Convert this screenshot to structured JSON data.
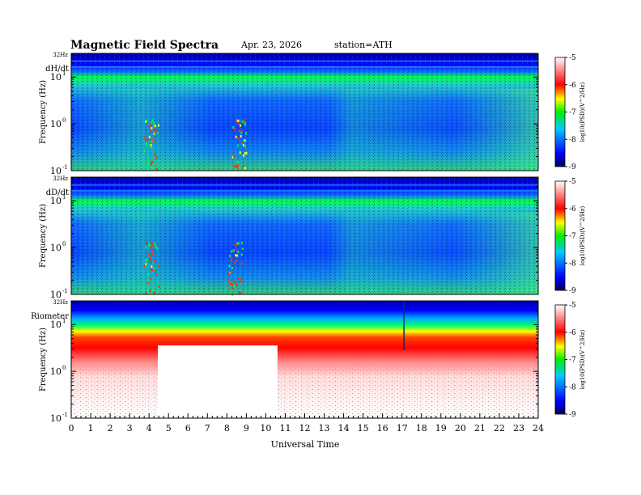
{
  "header": {
    "title": "Magnetic Field Spectra",
    "date": "Apr. 23, 2026",
    "station": "station=ATH"
  },
  "chart_data": {
    "type": "heatmap",
    "xlabel": "Universal Time",
    "x_ticks": [
      0,
      1,
      2,
      3,
      4,
      5,
      6,
      7,
      8,
      9,
      10,
      11,
      12,
      13,
      14,
      15,
      16,
      17,
      18,
      19,
      20,
      21,
      22,
      23,
      24
    ],
    "xlim": [
      0,
      24
    ],
    "ylim_hz": [
      0.1,
      32
    ],
    "y_scale": "log",
    "colorbar": {
      "label": "log10(PSD)(V^2/Hz)",
      "ticks": [
        "-5",
        "-6",
        "-7",
        "-8",
        "-9"
      ],
      "range": [
        -9,
        -5
      ]
    },
    "panels": [
      {
        "label": "dH/dt",
        "ylabel": "Frequency (Hz)",
        "y_top_label": "32Hz",
        "y_ticks": [
          {
            "base": "10",
            "exp": "1",
            "value": 10
          },
          {
            "base": "10",
            "exp": "0",
            "value": 1
          },
          {
            "base": "10",
            "exp": "-1",
            "value": 0.1
          }
        ],
        "bright_bursts_ut": [
          4.1,
          8.6
        ]
      },
      {
        "label": "dD/dt",
        "ylabel": "Frequency (Hz)",
        "y_top_label": "32Hz",
        "y_ticks": [
          {
            "base": "10",
            "exp": "1",
            "value": 10
          },
          {
            "base": "10",
            "exp": "0",
            "value": 1
          },
          {
            "base": "10",
            "exp": "-1",
            "value": 0.1
          }
        ],
        "bright_bursts_ut": [
          4.1,
          8.4
        ]
      },
      {
        "label": "Riometer",
        "ylabel": "Frequency (Hz)",
        "y_top_label": "32Hz",
        "y_ticks": [
          {
            "base": "10",
            "exp": "1",
            "value": 10
          },
          {
            "base": "10",
            "exp": "0",
            "value": 1
          },
          {
            "base": "10",
            "exp": "-1",
            "value": 0.1
          }
        ],
        "data_gap_ut": [
          4.45,
          10.6
        ],
        "spike_ut": 17.1
      }
    ]
  }
}
